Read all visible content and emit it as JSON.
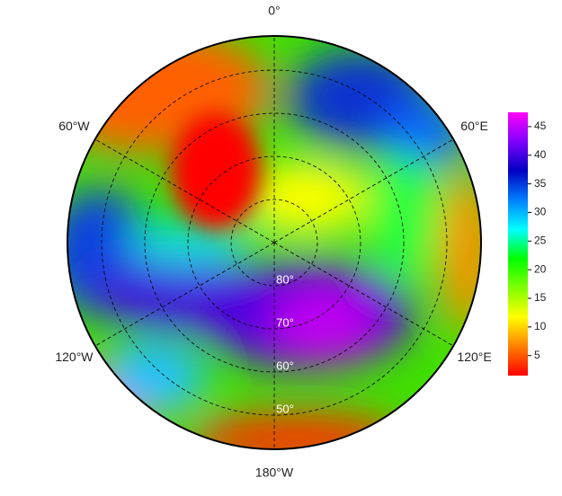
{
  "map": {
    "longitude_labels": [
      "0°",
      "60°E",
      "120°E",
      "180°W",
      "120°W",
      "60°W"
    ],
    "latitude_labels": [
      "80°",
      "70°",
      "60°",
      "50°"
    ],
    "colorbar": {
      "lim": [
        1.5,
        47.5
      ],
      "ticks": [
        5,
        10,
        15,
        20,
        25,
        30,
        35,
        40,
        45
      ],
      "colors": [
        "#ff0000",
        "#ff8000",
        "#ffff00",
        "#80ff00",
        "#00ff00",
        "#00ffff",
        "#0080ff",
        "#0000c0",
        "#8000ff",
        "#ff00ff"
      ]
    }
  }
}
